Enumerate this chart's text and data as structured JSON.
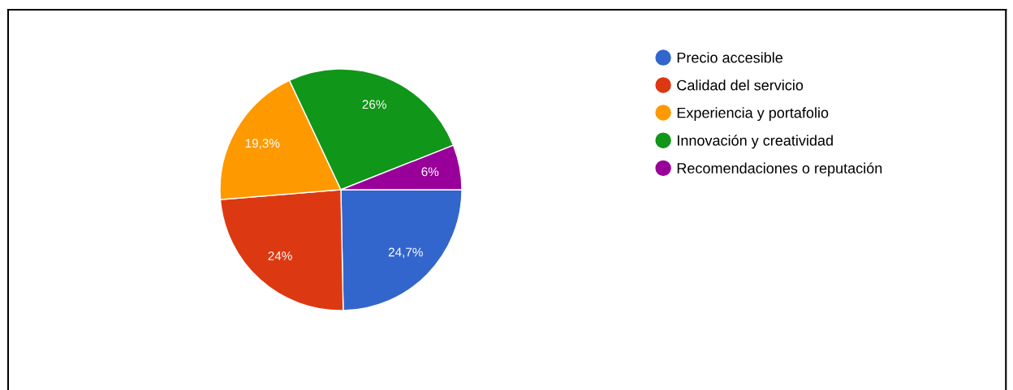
{
  "chart_data": {
    "type": "pie",
    "categories": [
      "Precio accesible",
      "Calidad del servicio",
      "Experiencia y portafolio",
      "Innovación y creatividad",
      "Recomendaciones o reputación"
    ],
    "values": [
      24.7,
      24,
      19.3,
      26,
      6
    ],
    "colors": [
      "#3366cc",
      "#dc3912",
      "#ff9900",
      "#109618",
      "#990099"
    ],
    "value_labels": [
      "24,7%",
      "24%",
      "19,3%",
      "26%",
      "6%"
    ],
    "legend": "right"
  }
}
